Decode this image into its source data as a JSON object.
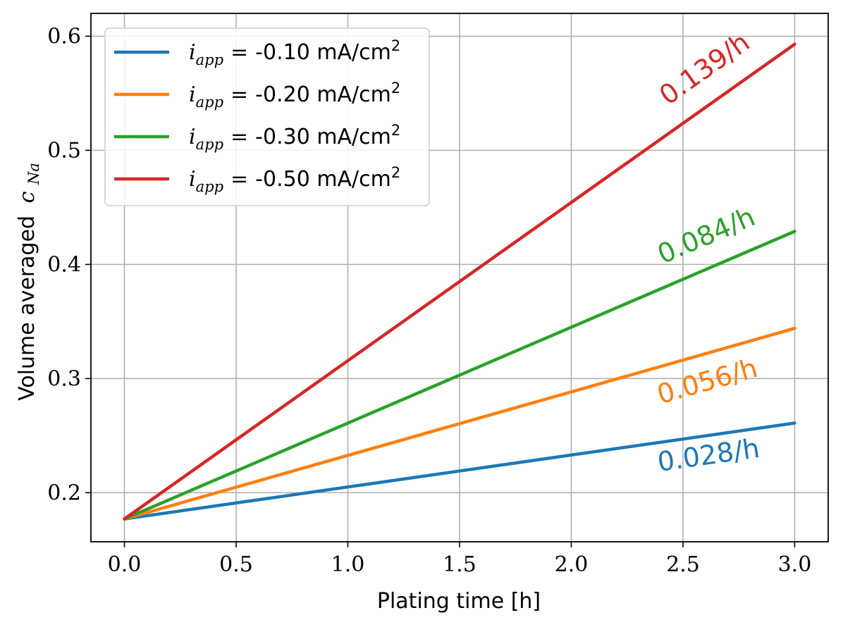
{
  "chart_data": {
    "type": "line",
    "title": "",
    "xlabel": "Plating time [h]",
    "ylabel": "Volume averaged",
    "ylabel_math": "c",
    "ylabel_math_sub": "Na",
    "xlim": [
      -0.15,
      3.15
    ],
    "ylim": [
      0.157,
      0.62
    ],
    "xticks": [
      0.0,
      0.5,
      1.0,
      1.5,
      2.0,
      2.5,
      3.0
    ],
    "xtick_labels": [
      "0.0",
      "0.5",
      "1.0",
      "1.5",
      "2.0",
      "2.5",
      "3.0"
    ],
    "yticks": [
      0.2,
      0.3,
      0.4,
      0.5,
      0.6
    ],
    "ytick_labels": [
      "0.2",
      "0.3",
      "0.4",
      "0.5",
      "0.6"
    ],
    "grid": true,
    "legend_position": "top-left",
    "series": [
      {
        "name": "i_app = -0.10 mA/cm2",
        "legend_var": "i",
        "legend_sub": "app",
        "legend_eq": "=",
        "legend_value": "-0.10 mA/cm",
        "legend_sup": "2",
        "color": "#1f77b4",
        "x": [
          0.0,
          3.0
        ],
        "y": [
          0.177,
          0.261
        ],
        "rate_label": "0.028/h",
        "rate_anchor": [
          2.62,
          0.225
        ]
      },
      {
        "name": "i_app = -0.20 mA/cm2",
        "legend_var": "i",
        "legend_sub": "app",
        "legend_eq": "=",
        "legend_value": "-0.20 mA/cm",
        "legend_sup": "2",
        "color": "#ff7f0e",
        "x": [
          0.0,
          3.0
        ],
        "y": [
          0.177,
          0.344
        ],
        "rate_label": "0.056/h",
        "rate_anchor": [
          2.62,
          0.29
        ]
      },
      {
        "name": "i_app = -0.30 mA/cm2",
        "legend_var": "i",
        "legend_sub": "app",
        "legend_eq": "=",
        "legend_value": "-0.30 mA/cm",
        "legend_sup": "2",
        "color": "#2ca02c",
        "x": [
          0.0,
          3.0
        ],
        "y": [
          0.177,
          0.429
        ],
        "rate_label": "0.084/h",
        "rate_anchor": [
          2.62,
          0.418
        ]
      },
      {
        "name": "i_app = -0.50 mA/cm2",
        "legend_var": "i",
        "legend_sub": "app",
        "legend_eq": "=",
        "legend_value": "-0.50 mA/cm",
        "legend_sup": "2",
        "color": "#d62728",
        "x": [
          0.0,
          3.0
        ],
        "y": [
          0.177,
          0.593
        ],
        "rate_label": "0.139/h",
        "rate_anchor": [
          2.62,
          0.565
        ]
      }
    ]
  }
}
